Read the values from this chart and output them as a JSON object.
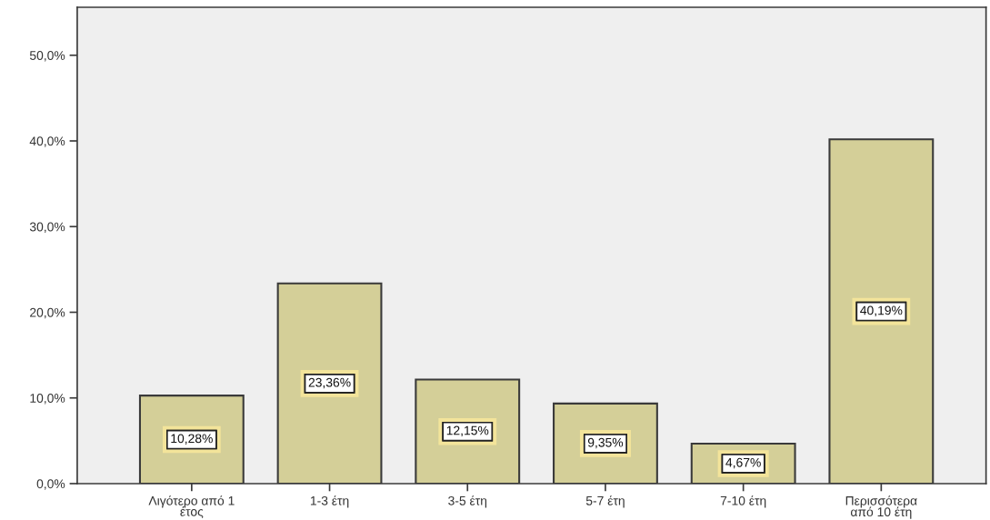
{
  "chart_data": {
    "type": "bar",
    "categories": [
      "Λιγότερο από 1\nέτος",
      "1-3 έτη",
      "3-5 έτη",
      "5-7 έτη",
      "7-10 έτη",
      "Περισσότερα\nαπό 10 έτη"
    ],
    "values": [
      10.28,
      23.36,
      12.15,
      9.35,
      4.67,
      40.19
    ],
    "value_labels": [
      "10,28%",
      "23,36%",
      "12,15%",
      "9,35%",
      "4,67%",
      "40,19%"
    ],
    "color": "#d4cf98",
    "ylim": [
      0,
      55.6
    ],
    "yticks": [
      {
        "value": 0,
        "label": "0,0%"
      },
      {
        "value": 10,
        "label": "10,0%"
      },
      {
        "value": 20,
        "label": "20,0%"
      },
      {
        "value": 30,
        "label": "30,0%"
      },
      {
        "value": 40,
        "label": "40,0%"
      },
      {
        "value": 50,
        "label": "50,0%"
      }
    ],
    "grid": false
  }
}
